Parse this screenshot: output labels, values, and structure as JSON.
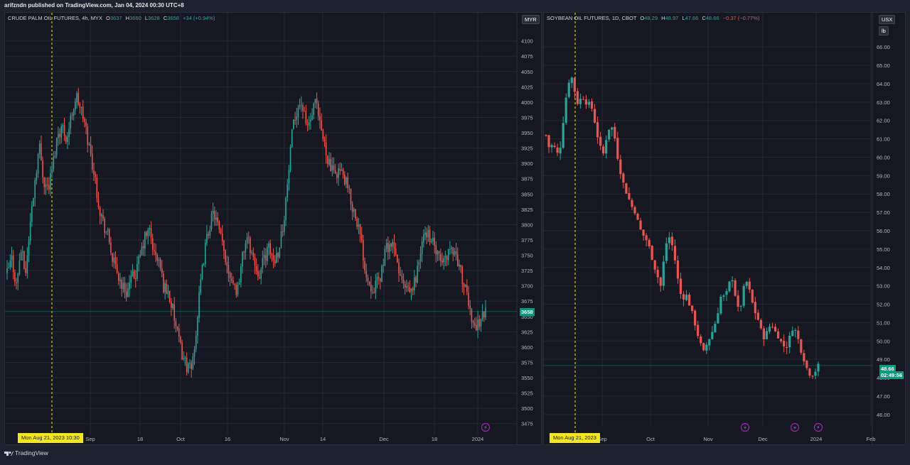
{
  "header": {
    "publish_text": "arifzndn published on TradingView.com, Jan 04, 2024 00:30 UTC+8"
  },
  "footer": {
    "brand": "TradingView"
  },
  "charts": [
    {
      "legend": {
        "title": "CRUDE PALM OIL FUTURES, 4h, MYX",
        "o_label": "O",
        "o": "3637",
        "h_label": "H",
        "h": "3660",
        "l_label": "L",
        "l": "3628",
        "c_label": "C",
        "c": "3658",
        "change": "+34 (+0.94%)"
      },
      "currency": "MYR",
      "last_price_tag": "3658",
      "crosshair_date": "Mon Aug 21, 2023   10:30"
    },
    {
      "legend": {
        "title": "SOYBEAN OIL FUTURES, 1D, CBOT",
        "o_label": "O",
        "o": "48.29",
        "h_label": "H",
        "h": "48.97",
        "l_label": "L",
        "l": "47.66",
        "c_label": "C",
        "c": "48.66",
        "change": "−0.37 (−0.77%)"
      },
      "currency": "USX",
      "unit": "lb",
      "last_price_tag": "48.66",
      "countdown": "02:49:56",
      "crosshair_date": "Mon Aug 21, 2023"
    }
  ],
  "chart_data": [
    {
      "type": "candlestick",
      "title": "CRUDE PALM OIL FUTURES, 4h, MYX",
      "y_ticks": [
        "4100",
        "4075",
        "4050",
        "4025",
        "4000",
        "3975",
        "3950",
        "3925",
        "3900",
        "3875",
        "3850",
        "3825",
        "3800",
        "3775",
        "3750",
        "3725",
        "3700",
        "3675",
        "3650",
        "3625",
        "3600",
        "3575",
        "3550",
        "3525",
        "3500",
        "3475"
      ],
      "ylim": [
        3470,
        4110
      ],
      "x_ticks": [
        "Sep",
        "18",
        "Oct",
        "16",
        "Nov",
        "14",
        "Dec",
        "18",
        "2024"
      ],
      "up_color": "#26a69a",
      "down_color": "#ef5350",
      "grid": true,
      "last_price": 3658,
      "crosshair_date": "Mon Aug 21, 2023 10:30",
      "trend_points": [
        3720,
        3745,
        3700,
        3760,
        3720,
        3800,
        3870,
        3930,
        3870,
        3860,
        3900,
        3950,
        3960,
        3940,
        3980,
        4010,
        3990,
        3960,
        3920,
        3880,
        3830,
        3800,
        3780,
        3740,
        3720,
        3700,
        3690,
        3710,
        3720,
        3750,
        3780,
        3790,
        3750,
        3740,
        3700,
        3690,
        3660,
        3620,
        3590,
        3570,
        3560,
        3620,
        3700,
        3760,
        3800,
        3820,
        3790,
        3760,
        3730,
        3710,
        3690,
        3740,
        3780,
        3760,
        3730,
        3720,
        3750,
        3760,
        3740,
        3760,
        3800,
        3870,
        3950,
        3990,
        4000,
        3960,
        3970,
        4000,
        3960,
        3930,
        3900,
        3880,
        3890,
        3880,
        3860,
        3830,
        3810,
        3770,
        3720,
        3700,
        3700,
        3710,
        3750,
        3770,
        3760,
        3730,
        3700,
        3690,
        3690,
        3720,
        3760,
        3790,
        3780,
        3760,
        3740,
        3740,
        3760,
        3760,
        3740,
        3710,
        3680,
        3650,
        3630,
        3650,
        3658
      ],
      "axis_labels": [
        "Sep",
        "18",
        "Oct",
        "16",
        "Nov",
        "14",
        "Dec",
        "18",
        "2024"
      ]
    },
    {
      "type": "candlestick",
      "title": "SOYBEAN OIL FUTURES, 1D, CBOT",
      "y_ticks": [
        "66.00",
        "65.00",
        "64.00",
        "63.00",
        "62.00",
        "61.00",
        "60.00",
        "59.00",
        "58.00",
        "57.00",
        "56.00",
        "55.00",
        "54.00",
        "53.00",
        "52.00",
        "51.00",
        "50.00",
        "49.00",
        "48.00",
        "47.00",
        "46.00"
      ],
      "ylim": [
        45.8,
        66.2
      ],
      "x_ticks": [
        "Sep",
        "Oct",
        "Nov",
        "Dec",
        "2024",
        "Feb"
      ],
      "up_color": "#26a69a",
      "down_color": "#ef5350",
      "grid": true,
      "last_price": 48.66,
      "crosshair_date": "Mon Aug 21, 2023",
      "trend_points": [
        61.2,
        60.4,
        60.8,
        60.1,
        60.6,
        62.3,
        63.9,
        64.5,
        63.6,
        62.8,
        63.4,
        63.0,
        62.9,
        62.6,
        61.5,
        60.6,
        60.2,
        61.2,
        61.8,
        61.3,
        60.0,
        59.0,
        58.3,
        57.8,
        57.3,
        57.0,
        56.2,
        55.8,
        55.5,
        55.0,
        54.2,
        53.6,
        53.0,
        54.6,
        55.8,
        55.4,
        54.4,
        53.1,
        52.2,
        52.6,
        52.0,
        51.4,
        50.6,
        49.9,
        49.4,
        49.9,
        50.3,
        50.8,
        51.6,
        52.6,
        52.3,
        53.1,
        53.4,
        52.3,
        51.4,
        52.8,
        53.2,
        52.6,
        51.7,
        51.3,
        50.6,
        50.1,
        50.7,
        50.9,
        50.5,
        50.2,
        49.8,
        49.6,
        50.2,
        50.8,
        50.4,
        49.6,
        49.0,
        48.4,
        48.1,
        48.3,
        48.66
      ],
      "axis_labels": [
        "Sep",
        "Oct",
        "Nov",
        "Dec",
        "2024",
        "Feb"
      ]
    }
  ]
}
